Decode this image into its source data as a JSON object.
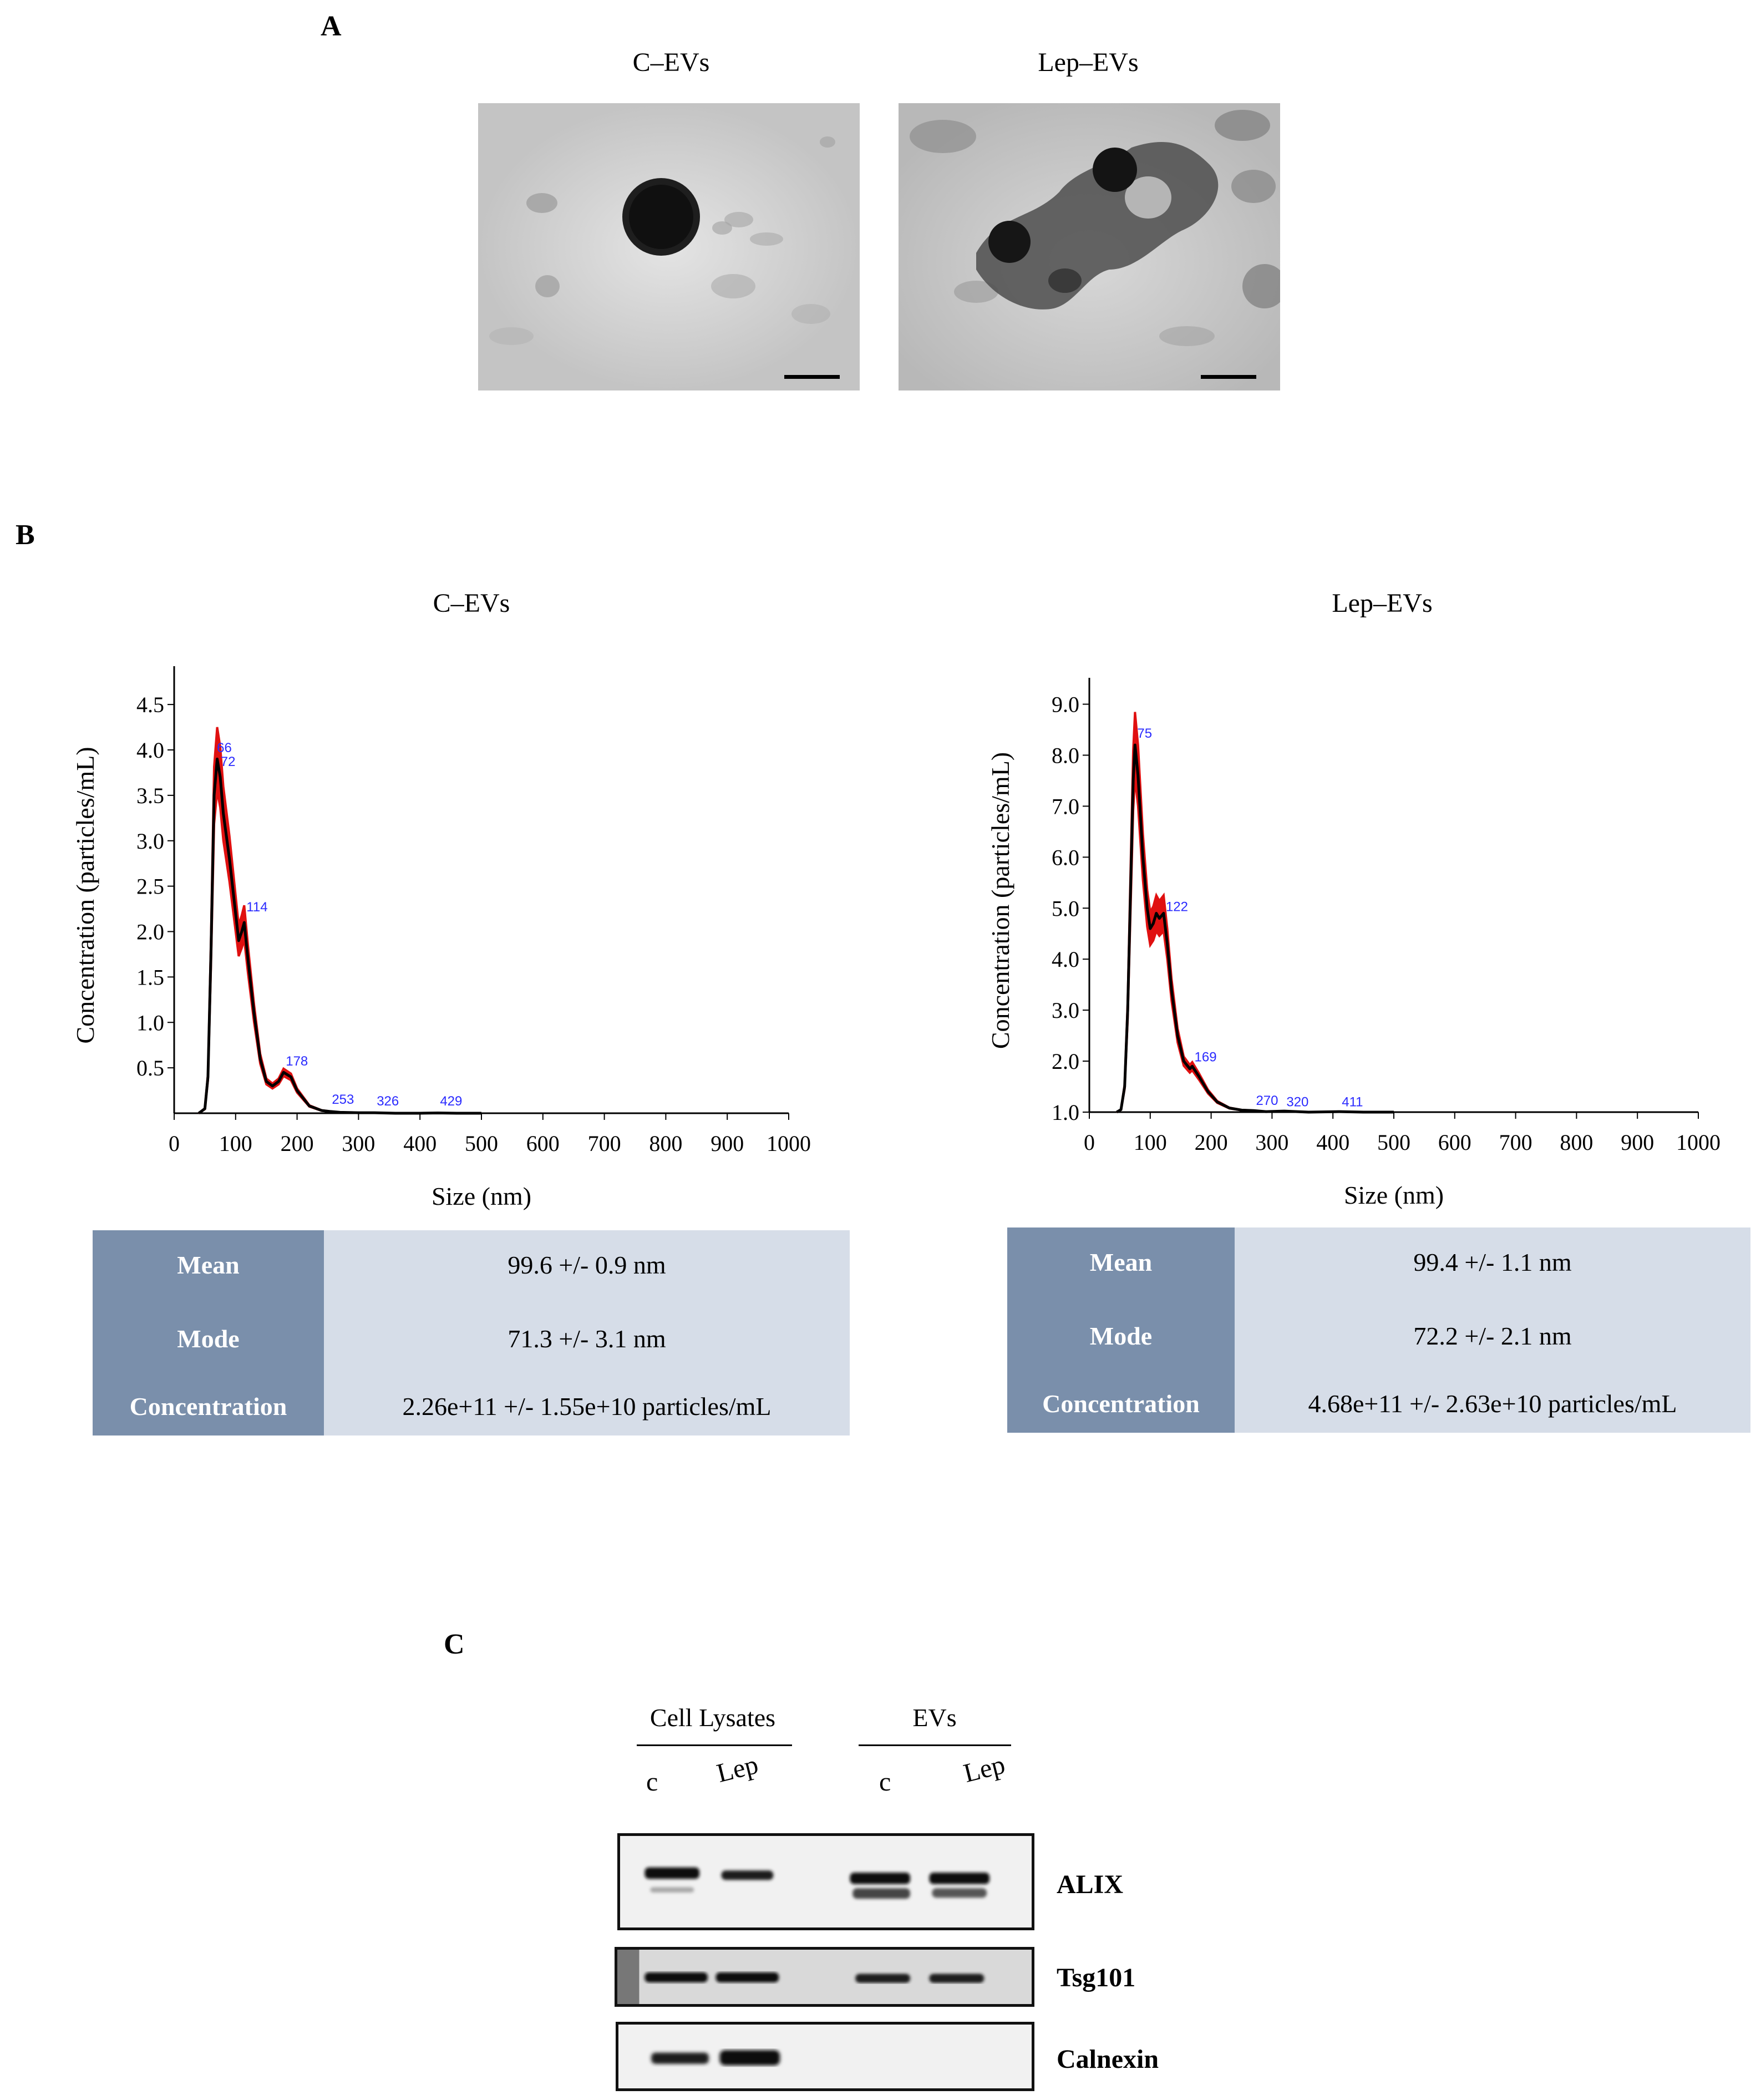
{
  "panels": {
    "A": {
      "letter": "A",
      "images": [
        {
          "title": "C–EVs"
        },
        {
          "title": "Lep–EVs"
        }
      ]
    },
    "B": {
      "letter": "B",
      "charts": [
        {
          "title": "C–EVs",
          "stats": [
            {
              "label": "Mean",
              "value": "99.6 +/- 0.9 nm"
            },
            {
              "label": "Mode",
              "value": "71.3 +/- 3.1 nm"
            },
            {
              "label": "Concentration",
              "value": "2.26e+11  +/- 1.55e+10  particles/mL"
            }
          ]
        },
        {
          "title": "Lep–EVs",
          "stats": [
            {
              "label": "Mean",
              "value": "99.4 +/- 1.1 nm"
            },
            {
              "label": "Mode",
              "value": "72.2 +/- 2.1 nm"
            },
            {
              "label": "Concentration",
              "value": "4.68e+11  +/- 2.63e+10  particles/mL"
            }
          ]
        }
      ]
    },
    "C": {
      "letter": "C",
      "groups": [
        {
          "label": "Cell Lysates",
          "lanes": [
            "c",
            "Lep"
          ]
        },
        {
          "label": "EVs",
          "lanes": [
            "c",
            "Lep"
          ]
        }
      ],
      "proteins": [
        "ALIX",
        "Tsg101",
        "Calnexin"
      ]
    }
  },
  "chart_data": [
    {
      "type": "line",
      "title": "C–EVs",
      "xlabel": "Size (nm)",
      "ylabel": "Concentration  (particles/mL)",
      "xlim": [
        0,
        1000
      ],
      "ylim": [
        0,
        4.8
      ],
      "xticks": [
        0,
        100,
        200,
        300,
        400,
        500,
        600,
        700,
        800,
        900,
        1000
      ],
      "yticks": [
        0.5,
        1.0,
        1.5,
        2.0,
        2.5,
        3.0,
        3.5,
        4.0,
        4.5
      ],
      "ytick_labels": [
        "0.5",
        "1.0",
        "1.5",
        "2.0",
        "2.5",
        "3.0",
        "3.5",
        "4.0",
        "4.5"
      ],
      "series": [
        {
          "x": [
            40,
            50,
            55,
            60,
            65,
            70,
            75,
            80,
            90,
            100,
            105,
            110,
            114,
            120,
            130,
            140,
            150,
            160,
            170,
            178,
            190,
            200,
            220,
            240,
            253,
            270,
            300,
            326,
            360,
            400,
            429,
            460,
            500
          ],
          "y": [
            0,
            0.05,
            0.4,
            1.8,
            3.5,
            3.9,
            3.7,
            3.3,
            2.8,
            2.2,
            1.9,
            2.0,
            2.1,
            1.7,
            1.1,
            0.6,
            0.35,
            0.3,
            0.35,
            0.45,
            0.4,
            0.25,
            0.08,
            0.03,
            0.02,
            0.01,
            0.005,
            0.005,
            0,
            0,
            0.003,
            0,
            0
          ]
        }
      ],
      "peak_labels": [
        {
          "x": 66,
          "y": 3.95,
          "text": "66"
        },
        {
          "x": 72,
          "y": 3.8,
          "text": "72"
        },
        {
          "x": 114,
          "y": 2.2,
          "text": "114"
        },
        {
          "x": 178,
          "y": 0.5,
          "text": "178"
        },
        {
          "x": 253,
          "y": 0.08,
          "text": "253"
        },
        {
          "x": 326,
          "y": 0.06,
          "text": "326"
        },
        {
          "x": 429,
          "y": 0.06,
          "text": "429"
        }
      ]
    },
    {
      "type": "line",
      "title": "Lep–EVs",
      "xlabel": "Size (nm)",
      "ylabel": "Concentration  (particles/mL)",
      "xlim": [
        0,
        1000
      ],
      "ylim": [
        1.0,
        9.3
      ],
      "xticks": [
        0,
        100,
        200,
        300,
        400,
        500,
        600,
        700,
        800,
        900,
        1000
      ],
      "yticks": [
        1.0,
        2.0,
        3.0,
        4.0,
        5.0,
        6.0,
        7.0,
        8.0,
        9.0
      ],
      "ytick_labels": [
        "1.0",
        "2.0",
        "3.0",
        "4.0",
        "5.0",
        "6.0",
        "7.0",
        "8.0",
        "9.0"
      ],
      "series": [
        {
          "x": [
            45,
            52,
            58,
            63,
            68,
            72,
            75,
            80,
            88,
            95,
            100,
            105,
            110,
            115,
            122,
            128,
            135,
            145,
            155,
            165,
            169,
            180,
            195,
            210,
            230,
            250,
            270,
            290,
            320,
            360,
            411,
            450,
            500
          ],
          "y": [
            1.0,
            1.05,
            1.5,
            3.0,
            5.5,
            7.5,
            8.2,
            7.6,
            6.0,
            5.0,
            4.6,
            4.7,
            4.9,
            4.8,
            4.9,
            4.3,
            3.4,
            2.5,
            2.0,
            1.85,
            1.9,
            1.7,
            1.4,
            1.2,
            1.08,
            1.04,
            1.03,
            1.01,
            1.02,
            1.0,
            1.01,
            1.0,
            1.0
          ]
        }
      ],
      "peak_labels": [
        {
          "x": 75,
          "y": 8.3,
          "text": "75"
        },
        {
          "x": 122,
          "y": 4.9,
          "text": "122"
        },
        {
          "x": 169,
          "y": 1.95,
          "text": "169"
        },
        {
          "x": 270,
          "y": 1.1,
          "text": "270"
        },
        {
          "x": 320,
          "y": 1.07,
          "text": "320"
        },
        {
          "x": 411,
          "y": 1.07,
          "text": "411"
        }
      ]
    }
  ]
}
